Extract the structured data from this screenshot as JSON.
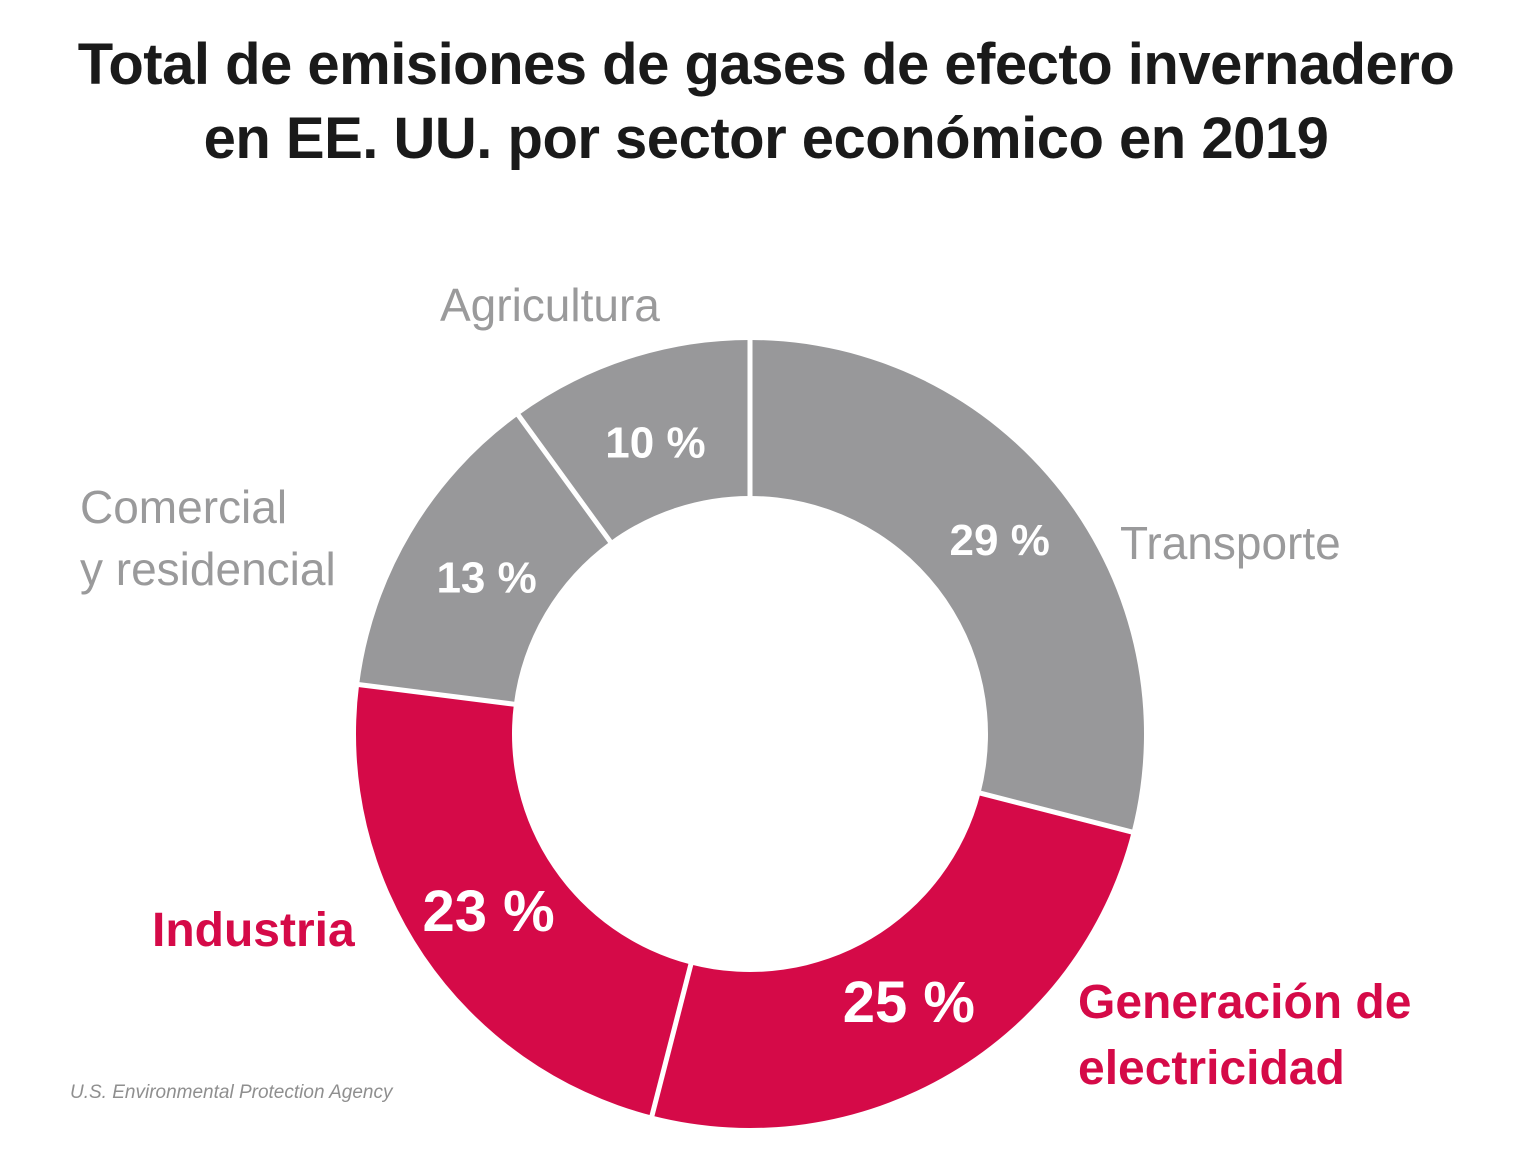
{
  "title": {
    "line1": "Total de emisiones de gases de efecto invernadero",
    "line2": "en EE. UU. por sector económico en 2019"
  },
  "source": "U.S. Environmental Protection Agency",
  "colors": {
    "gray": "#98989a",
    "red": "#d50a48",
    "gray_text": "#9a9a9b",
    "value_text": "#ffffff",
    "separator": "#ffffff"
  },
  "labels": {
    "transporte": [
      "Transporte"
    ],
    "electricidad": [
      "Generación de",
      "electricidad"
    ],
    "industria": [
      "Industria"
    ],
    "comercial": [
      "Comercial",
      "y residencial"
    ],
    "agricultura": [
      "Agricultura"
    ]
  },
  "chart_data": {
    "type": "pie",
    "donut": true,
    "title": "Total de emisiones de gases de efecto invernadero en EE. UU. por sector económico en 2019",
    "start_angle": "12 o'clock",
    "direction": "clockwise",
    "legend": "none (direct labels)",
    "slices": [
      {
        "label": "Transporte",
        "value": 29,
        "display": "29 %",
        "color": "#98989a"
      },
      {
        "label": "Generación de electricidad",
        "value": 25,
        "display": "25 %",
        "color": "#d50a48"
      },
      {
        "label": "Industria",
        "value": 23,
        "display": "23 %",
        "color": "#d50a48"
      },
      {
        "label": "Comercial y residencial",
        "value": 13,
        "display": "13 %",
        "color": "#98989a"
      },
      {
        "label": "Agricultura",
        "value": 10,
        "display": "10 %",
        "color": "#98989a"
      }
    ]
  }
}
